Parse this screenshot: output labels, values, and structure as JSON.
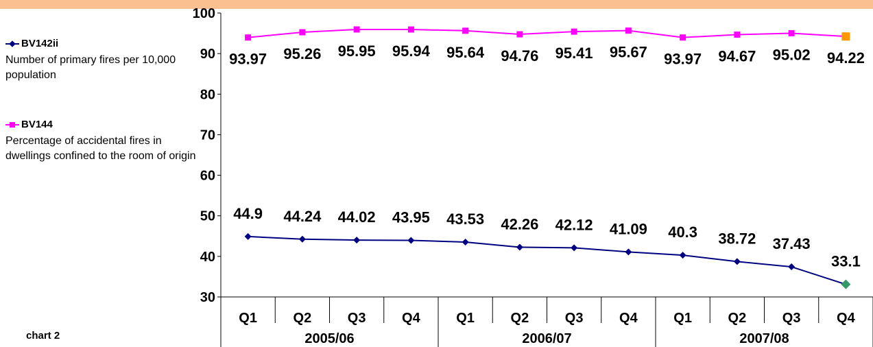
{
  "colors": {
    "top_band": "#fac090",
    "series_1": "#000080",
    "series_2": "#ff00ff",
    "last_point_1": "#339966",
    "last_point_2": "#ff9900"
  },
  "legend": [
    {
      "name": "BV142ii",
      "description": "Number of primary fires per 10,000 population"
    },
    {
      "name": "BV144",
      "description": "Percentage of accidental fires in dwellings confined to the room of origin"
    }
  ],
  "footnote": "chart 2",
  "chart_data": {
    "type": "line",
    "categories": [
      "Q1",
      "Q2",
      "Q3",
      "Q4",
      "Q1",
      "Q2",
      "Q3",
      "Q4",
      "Q1",
      "Q2",
      "Q3",
      "Q4"
    ],
    "groups": [
      {
        "label": "2005/06",
        "span": 4
      },
      {
        "label": "2006/07",
        "span": 4
      },
      {
        "label": "2007/08",
        "span": 4
      }
    ],
    "y_ticks": [
      "30",
      "40",
      "50",
      "60",
      "70",
      "80",
      "90",
      "100"
    ],
    "ylim": [
      30,
      100
    ],
    "grid": false,
    "series": [
      {
        "name": "BV142ii",
        "values": [
          44.9,
          44.24,
          44.02,
          43.95,
          43.53,
          42.26,
          42.12,
          41.09,
          40.3,
          38.72,
          37.43,
          33.1
        ],
        "labels": [
          "44.9",
          "44.24",
          "44.02",
          "43.95",
          "43.53",
          "42.26",
          "42.12",
          "41.09",
          "40.3",
          "38.72",
          "37.43",
          "33.1"
        ],
        "marker": "diamond"
      },
      {
        "name": "BV144",
        "values": [
          93.97,
          95.26,
          95.95,
          95.94,
          95.64,
          94.76,
          95.41,
          95.67,
          93.97,
          94.67,
          95.02,
          94.22
        ],
        "labels": [
          "93.97",
          "95.26",
          "95.95",
          "95.94",
          "95.64",
          "94.76",
          "95.41",
          "95.67",
          "93.97",
          "94.67",
          "95.02",
          "94.22"
        ],
        "marker": "square"
      }
    ]
  }
}
